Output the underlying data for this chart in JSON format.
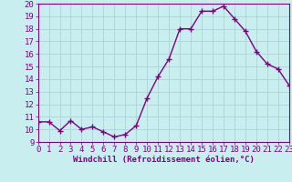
{
  "hours": [
    0,
    1,
    2,
    3,
    4,
    5,
    6,
    7,
    8,
    9,
    10,
    11,
    12,
    13,
    14,
    15,
    16,
    17,
    18,
    19,
    20,
    21,
    22,
    23
  ],
  "values": [
    10.6,
    10.6,
    9.9,
    10.7,
    10.0,
    10.2,
    9.8,
    9.4,
    9.6,
    10.3,
    12.5,
    14.2,
    15.6,
    18.0,
    18.0,
    19.4,
    19.4,
    19.8,
    18.8,
    17.8,
    16.2,
    15.2,
    14.8,
    13.5
  ],
  "line_color": "#800080",
  "marker": "+",
  "marker_size": 4,
  "bg_color": "#c8eef0",
  "grid_color": "#b0d8dc",
  "xlabel": "Windchill (Refroidissement éolien,°C)",
  "xlabel_color": "#800080",
  "tick_color": "#800080",
  "ylim": [
    9,
    20
  ],
  "xlim": [
    0,
    23
  ],
  "yticks": [
    9,
    10,
    11,
    12,
    13,
    14,
    15,
    16,
    17,
    18,
    19,
    20
  ],
  "xticks": [
    0,
    1,
    2,
    3,
    4,
    5,
    6,
    7,
    8,
    9,
    10,
    11,
    12,
    13,
    14,
    15,
    16,
    17,
    18,
    19,
    20,
    21,
    22,
    23
  ],
  "font_size": 6.5,
  "line_width": 1.0
}
